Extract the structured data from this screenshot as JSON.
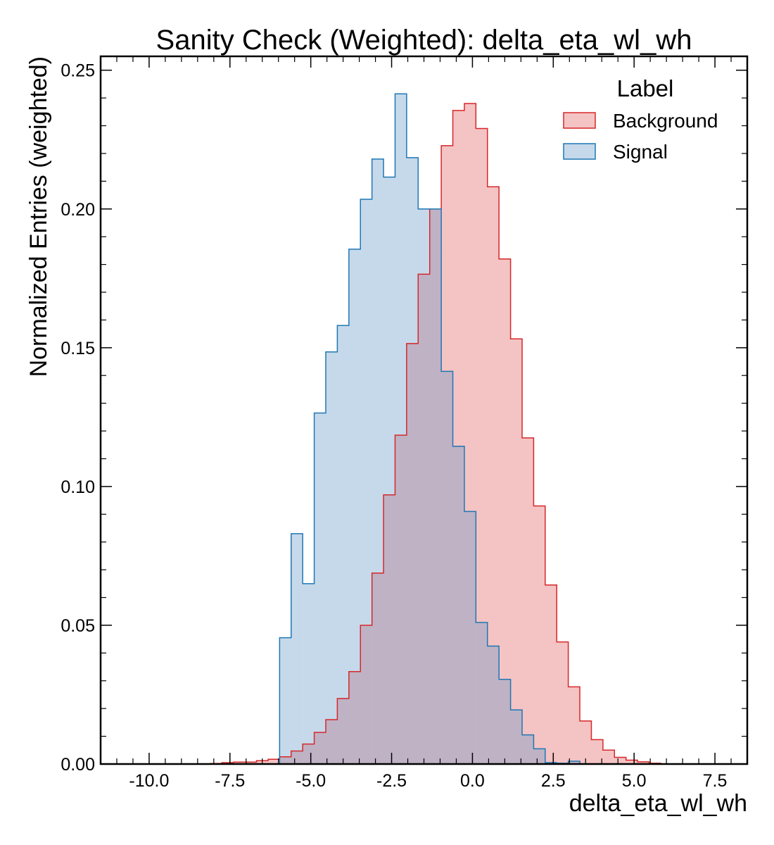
{
  "chart_data": {
    "type": "histogram",
    "title": "Sanity Check (Weighted): delta_eta_wl_wh",
    "xlabel": "delta_eta_wl_wh",
    "ylabel": "Normalized Entries (weighted)",
    "xlim": [
      -11.5,
      8.5
    ],
    "ylim": [
      0,
      0.255
    ],
    "xticks": [
      -10.0,
      -7.5,
      -5.0,
      -2.5,
      0.0,
      2.5,
      5.0,
      7.5
    ],
    "xtick_labels": [
      "-10.0",
      "-7.5",
      "-5.0",
      "-2.5",
      "0.0",
      "2.5",
      "5.0",
      "7.5"
    ],
    "yticks": [
      0.0,
      0.05,
      0.1,
      0.15,
      0.2,
      0.25
    ],
    "ytick_labels": [
      "0.00",
      "0.05",
      "0.10",
      "0.15",
      "0.20",
      "0.25"
    ],
    "bin_edges": [
      -10.25,
      -9.893,
      -9.536,
      -9.179,
      -8.821,
      -8.464,
      -8.107,
      -7.75,
      -7.393,
      -7.036,
      -6.679,
      -6.321,
      -5.964,
      -5.607,
      -5.25,
      -4.893,
      -4.536,
      -4.179,
      -3.821,
      -3.464,
      -3.107,
      -2.75,
      -2.393,
      -2.036,
      -1.679,
      -1.321,
      -0.964,
      -0.607,
      -0.25,
      0.107,
      0.464,
      0.821,
      1.179,
      1.536,
      1.893,
      2.25,
      2.607,
      2.964,
      3.321,
      3.679,
      4.036,
      4.393,
      4.75,
      5.107,
      5.464,
      5.821,
      6.179,
      6.536,
      6.893,
      7.25,
      7.607,
      7.964
    ],
    "legend": {
      "title": "Label",
      "position": "top-right"
    },
    "grid": false,
    "series": [
      {
        "name": "Background",
        "color": "#d62728",
        "fill": "rgba(227,97,101,0.38)",
        "values": [
          0,
          0,
          0,
          0,
          0,
          0,
          0.0002,
          0.0005,
          0.0007,
          0.0007,
          0.0012,
          0.0017,
          0.0026,
          0.0047,
          0.0072,
          0.0114,
          0.016,
          0.0236,
          0.0333,
          0.05,
          0.0688,
          0.097,
          0.1185,
          0.1515,
          0.1765,
          0.2,
          0.2228,
          0.2355,
          0.238,
          0.229,
          0.208,
          0.182,
          0.1532,
          0.1175,
          0.093,
          0.0645,
          0.044,
          0.0278,
          0.0155,
          0.0088,
          0.005,
          0.0024,
          0.0014,
          0.0008,
          0.0003,
          0,
          0,
          0,
          0,
          0,
          0
        ]
      },
      {
        "name": "Signal",
        "color": "#1f77b4",
        "fill": "rgba(96,150,200,0.36)",
        "values": [
          0,
          0,
          0,
          0,
          0,
          0,
          0,
          0,
          0,
          0,
          0,
          0,
          0.0455,
          0.083,
          0.065,
          0.1265,
          0.1485,
          0.158,
          0.1855,
          0.2035,
          0.218,
          0.2115,
          0.2415,
          0.2185,
          0.2,
          0.2,
          0.1415,
          0.1145,
          0.091,
          0.051,
          0.0425,
          0.0305,
          0.0195,
          0.0105,
          0.0055,
          0.0005,
          0.0003,
          0.001,
          0,
          0,
          0,
          0,
          0,
          0,
          0,
          0,
          0,
          0,
          0,
          0,
          0
        ]
      }
    ]
  }
}
